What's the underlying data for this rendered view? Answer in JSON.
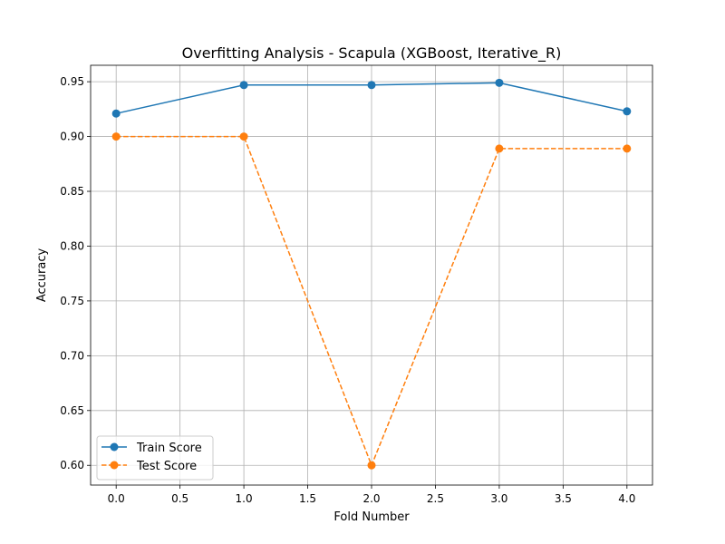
{
  "chart_data": {
    "type": "line",
    "title": "Overfitting Analysis - Scapula (XGBoost, Iterative_R)",
    "xlabel": "Fold Number",
    "ylabel": "Accuracy",
    "x": [
      0,
      1,
      2,
      3,
      4
    ],
    "xlim": [
      -0.2,
      4.2
    ],
    "ylim": [
      0.582,
      0.965
    ],
    "xticks": [
      0.0,
      0.5,
      1.0,
      1.5,
      2.0,
      2.5,
      3.0,
      3.5,
      4.0
    ],
    "xtick_labels": [
      "0.0",
      "0.5",
      "1.0",
      "1.5",
      "2.0",
      "2.5",
      "3.0",
      "3.5",
      "4.0"
    ],
    "yticks": [
      0.6,
      0.65,
      0.7,
      0.75,
      0.8,
      0.85,
      0.9,
      0.95
    ],
    "ytick_labels": [
      "0.60",
      "0.65",
      "0.70",
      "0.75",
      "0.80",
      "0.85",
      "0.90",
      "0.95"
    ],
    "grid": true,
    "legend_position": "lower-left",
    "series": [
      {
        "name": "Train Score",
        "values": [
          0.921,
          0.947,
          0.947,
          0.949,
          0.923
        ],
        "color": "#1f77b4",
        "linestyle": "solid",
        "marker": "circle"
      },
      {
        "name": "Test Score",
        "values": [
          0.9,
          0.9,
          0.6,
          0.889,
          0.889
        ],
        "color": "#ff7f0e",
        "linestyle": "dashed",
        "marker": "circle"
      }
    ]
  }
}
